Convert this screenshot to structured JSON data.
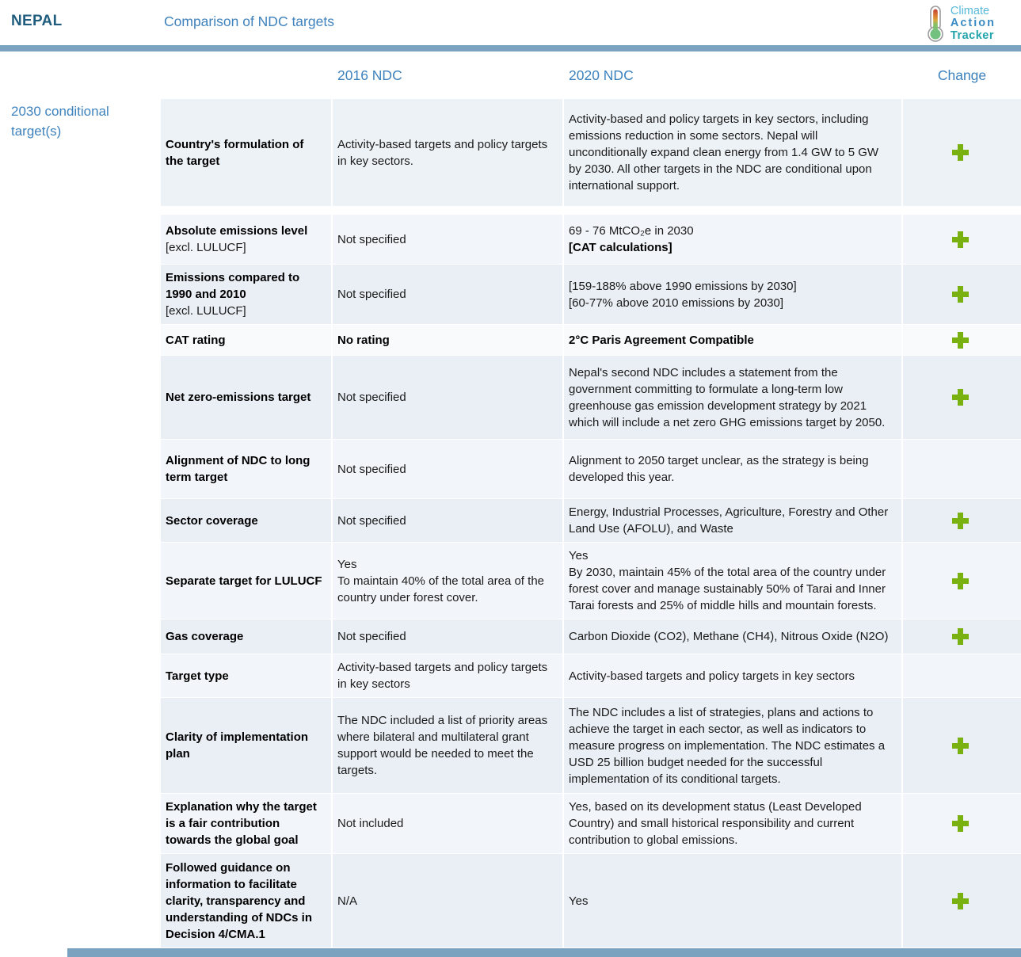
{
  "header": {
    "country": "NEPAL",
    "title": "Comparison of NDC targets",
    "logo": {
      "line1": "Climate",
      "line2": "Action",
      "line3": "Tracker"
    }
  },
  "columns": {
    "col2016": "2016 NDC",
    "col2020": "2020 NDC",
    "change": "Change"
  },
  "section_label": "2030 conditional target(s)",
  "colors": {
    "dark_blue": "#1f5c7e",
    "accent_blue": "#3e82bd",
    "rule_blue": "#7ba3c0",
    "plus_green": "#79b210",
    "logo_climate_blue": "#56b9da",
    "logo_action_blue": "#3a8bc4",
    "logo_tracker_teal": "#23a3ac"
  },
  "change_symbol": "+",
  "rows": [
    {
      "label": "Country's formulation of the target",
      "ndc2016": [
        {
          "text": "Activity-based targets and policy targets in key sectors."
        }
      ],
      "ndc2020": [
        {
          "text": "Activity-based and policy targets in key sectors, including emissions reduction in some sectors. Nepal will unconditionally expand clean energy from 1.4 GW to 5 GW by 2030. All other targets in the NDC are conditional upon international support."
        }
      ],
      "change": true
    },
    {
      "label": "Absolute emissions level",
      "note": "[excl. LULUCF]",
      "ndc2016": [
        {
          "text": "Not specified"
        }
      ],
      "ndc2020": [
        {
          "text": "69 - 76 MtCO₂e in 2030"
        },
        {
          "text": "[CAT calculations]",
          "bold": true
        }
      ],
      "change": true
    },
    {
      "label": "Emissions compared to 1990 and 2010",
      "note": "[excl. LULUCF]",
      "ndc2016": [
        {
          "text": "Not specified"
        }
      ],
      "ndc2020": [
        {
          "text": "[159-188% above 1990 emissions by 2030]"
        },
        {
          "text": "[60-77% above 2010 emissions by 2030]"
        }
      ],
      "change": true
    },
    {
      "label": "CAT rating",
      "emphasis": true,
      "ndc2016": [
        {
          "text": "No rating",
          "bold": true
        }
      ],
      "ndc2020": [
        {
          "text": "2°C Paris Agreement Compatible",
          "bold": true
        }
      ],
      "change": true
    },
    {
      "label": "Net zero-emissions target",
      "ndc2016": [
        {
          "text": "Not specified"
        }
      ],
      "ndc2020": [
        {
          "text": "Nepal's second NDC includes a statement from the government committing to formulate a long-term low greenhouse gas emission development strategy by 2021 which will include a net zero GHG emissions target by 2050."
        }
      ],
      "change": true
    },
    {
      "label": "Alignment of NDC to long term target",
      "ndc2016": [
        {
          "text": "Not specified"
        }
      ],
      "ndc2020": [
        {
          "text": "Alignment to 2050 target unclear, as the strategy is being developed this year."
        }
      ],
      "change": false
    },
    {
      "label": "Sector coverage",
      "ndc2016": [
        {
          "text": "Not specified"
        }
      ],
      "ndc2020": [
        {
          "text": "Energy, Industrial Processes, Agriculture, Forestry and Other Land Use (AFOLU), and Waste"
        }
      ],
      "change": true
    },
    {
      "label": "Separate target for LULUCF",
      "ndc2016": [
        {
          "text": "Yes"
        },
        {
          "text": "To maintain 40% of the total area of the country under forest cover."
        }
      ],
      "ndc2020": [
        {
          "text": "Yes"
        },
        {
          "text": "By 2030, maintain 45% of the total area of the country under forest cover and manage sustainably 50% of Tarai and Inner Tarai forests and 25% of middle hills and mountain forests."
        }
      ],
      "change": true
    },
    {
      "label": "Gas coverage",
      "ndc2016": [
        {
          "text": "Not specified"
        }
      ],
      "ndc2020": [
        {
          "text": "Carbon Dioxide (CO2), Methane (CH4), Nitrous Oxide (N2O)"
        }
      ],
      "change": true
    },
    {
      "label": "Target type",
      "ndc2016": [
        {
          "text": "Activity-based targets and policy targets in key sectors"
        }
      ],
      "ndc2020": [
        {
          "text": "Activity-based targets and policy targets in key sectors"
        }
      ],
      "change": false
    },
    {
      "label": "Clarity of implementation plan",
      "ndc2016": [
        {
          "text": "The NDC included a list of priority areas where bilateral and multilateral grant support would be needed to meet the targets."
        }
      ],
      "ndc2020": [
        {
          "text": "The NDC includes a list of strategies, plans and actions to achieve the target in each sector, as well as indicators to measure progress on implementation. The NDC estimates a USD 25 billion budget needed for the successful implementation of its conditional targets."
        }
      ],
      "change": true
    },
    {
      "label": "Explanation why the target is a fair contribution towards the global goal",
      "ndc2016": [
        {
          "text": "Not included"
        }
      ],
      "ndc2020": [
        {
          "text": "Yes, based on its development status (Least Developed Country) and small historical responsibility and current contribution to global emissions."
        }
      ],
      "change": true
    },
    {
      "label": "Followed guidance on information to facilitate clarity, transparency and understanding of NDCs in Decision 4/CMA.1",
      "ndc2016": [
        {
          "text": "N/A"
        }
      ],
      "ndc2020": [
        {
          "text": "Yes"
        }
      ],
      "change": true
    }
  ]
}
